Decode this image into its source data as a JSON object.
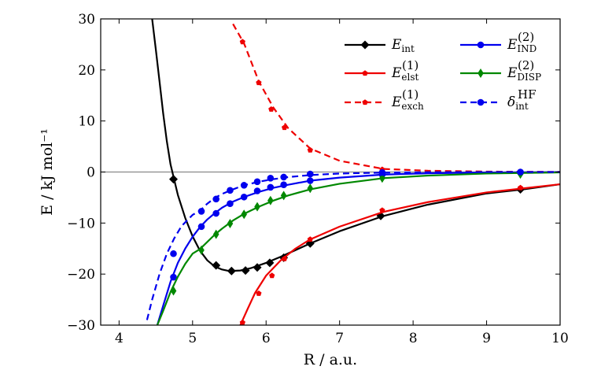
{
  "chart_data": {
    "type": "line",
    "title": "",
    "xlabel": "R / a.u.",
    "ylabel": "E / kJ mol⁻¹",
    "xlim": [
      3.75,
      10
    ],
    "ylim": [
      -30,
      30
    ],
    "xticks": [
      4,
      5,
      6,
      7,
      8,
      9,
      10
    ],
    "yticks": [
      -30,
      -20,
      -10,
      0,
      10,
      20,
      30
    ],
    "xtick_labels": [
      "4",
      "5",
      "6",
      "7",
      "8",
      "9",
      "10"
    ],
    "ytick_labels": [
      "−30",
      "−20",
      "−10",
      "0",
      "10",
      "20",
      "30"
    ],
    "zero_line": true,
    "legend_position": "upper-right",
    "series": [
      {
        "id": "int",
        "name": "E_int",
        "label_main": "E",
        "label_sub": "int",
        "label_sup": "",
        "color": "#000000",
        "linestyle": "solid",
        "marker": "diamond",
        "curve": [
          [
            4.45,
            30
          ],
          [
            4.5,
            24
          ],
          [
            4.55,
            17.8
          ],
          [
            4.6,
            11.5
          ],
          [
            4.65,
            6
          ],
          [
            4.7,
            1.5
          ],
          [
            4.75,
            -1.5
          ],
          [
            4.8,
            -4.5
          ],
          [
            4.9,
            -9
          ],
          [
            5.0,
            -12.6
          ],
          [
            5.1,
            -15.4
          ],
          [
            5.2,
            -17.3
          ],
          [
            5.3,
            -18.5
          ],
          [
            5.4,
            -19.1
          ],
          [
            5.5,
            -19.4
          ],
          [
            5.65,
            -19.3
          ],
          [
            5.8,
            -18.8
          ],
          [
            6.0,
            -17.8
          ],
          [
            6.2,
            -16.6
          ],
          [
            6.4,
            -15.3
          ],
          [
            6.6,
            -14.0
          ],
          [
            7.0,
            -11.6
          ],
          [
            7.6,
            -8.6
          ],
          [
            8.2,
            -6.4
          ],
          [
            9.0,
            -4.2
          ],
          [
            9.5,
            -3.4
          ],
          [
            10.0,
            -2.4
          ]
        ],
        "points": [
          [
            4.74,
            -1.4
          ],
          [
            5.32,
            -18.3
          ],
          [
            5.53,
            -19.4
          ],
          [
            5.72,
            -19.3
          ],
          [
            5.88,
            -18.7
          ],
          [
            6.05,
            -17.8
          ],
          [
            6.24,
            -16.8
          ],
          [
            6.6,
            -14.0
          ],
          [
            7.56,
            -8.6
          ],
          [
            9.46,
            -3.4
          ]
        ]
      },
      {
        "id": "elst",
        "name": "E_elst^(1)",
        "label_main": "E",
        "label_sub": "elst",
        "label_sup": "(1)",
        "color": "#ee0000",
        "linestyle": "solid",
        "marker": "pentagon",
        "curve": [
          [
            5.65,
            -30
          ],
          [
            5.75,
            -26.8
          ],
          [
            5.85,
            -23.7
          ],
          [
            6.0,
            -20.3
          ],
          [
            6.2,
            -17.3
          ],
          [
            6.4,
            -15.0
          ],
          [
            6.6,
            -13.2
          ],
          [
            7.0,
            -10.7
          ],
          [
            7.6,
            -7.8
          ],
          [
            8.2,
            -5.9
          ],
          [
            9.0,
            -4.0
          ],
          [
            9.5,
            -3.2
          ],
          [
            10.0,
            -2.4
          ]
        ],
        "points": [
          [
            5.68,
            -29.5
          ],
          [
            5.9,
            -23.8
          ],
          [
            6.08,
            -20.3
          ],
          [
            6.25,
            -17.0
          ],
          [
            6.6,
            -13.2
          ],
          [
            7.58,
            -7.5
          ],
          [
            9.46,
            -3.1
          ]
        ]
      },
      {
        "id": "exch",
        "name": "E_exch^(1)",
        "label_main": "E",
        "label_sub": "exch",
        "label_sup": "(1)",
        "color": "#ee0000",
        "linestyle": "dashed",
        "marker": "pentagon",
        "curve": [
          [
            5.55,
            29.0
          ],
          [
            5.7,
            25.2
          ],
          [
            5.9,
            17.8
          ],
          [
            6.1,
            12.6
          ],
          [
            6.3,
            8.6
          ],
          [
            6.6,
            4.6
          ],
          [
            7.0,
            2.2
          ],
          [
            7.6,
            0.6
          ],
          [
            8.2,
            0.25
          ],
          [
            9.0,
            0.08
          ],
          [
            10.0,
            0.02
          ]
        ],
        "points": [
          [
            5.68,
            25.5
          ],
          [
            5.9,
            17.5
          ],
          [
            6.07,
            12.3
          ],
          [
            6.25,
            8.7
          ],
          [
            6.6,
            4.3
          ],
          [
            7.58,
            0.5
          ],
          [
            9.46,
            0.05
          ]
        ]
      },
      {
        "id": "ind",
        "name": "E_IND^(2)",
        "label_main": "E",
        "label_sub": "IND",
        "label_sup": "(2)",
        "color": "#0000ee",
        "linestyle": "solid",
        "marker": "circle",
        "curve": [
          [
            4.52,
            -30
          ],
          [
            4.6,
            -26.2
          ],
          [
            4.7,
            -21.5
          ],
          [
            4.8,
            -17.8
          ],
          [
            4.9,
            -15.0
          ],
          [
            5.0,
            -12.7
          ],
          [
            5.1,
            -10.8
          ],
          [
            5.2,
            -9.3
          ],
          [
            5.3,
            -8.1
          ],
          [
            5.4,
            -7.0
          ],
          [
            5.55,
            -5.8
          ],
          [
            5.7,
            -4.9
          ],
          [
            5.9,
            -3.9
          ],
          [
            6.1,
            -3.1
          ],
          [
            6.3,
            -2.5
          ],
          [
            6.6,
            -1.7
          ],
          [
            7.0,
            -1.1
          ],
          [
            7.6,
            -0.5
          ],
          [
            8.2,
            -0.25
          ],
          [
            9.0,
            -0.1
          ],
          [
            10.0,
            -0.02
          ]
        ],
        "points": [
          [
            4.74,
            -20.6
          ],
          [
            5.12,
            -10.7
          ],
          [
            5.32,
            -8.1
          ],
          [
            5.51,
            -6.2
          ],
          [
            5.7,
            -4.9
          ],
          [
            5.88,
            -3.7
          ],
          [
            6.06,
            -3.0
          ],
          [
            6.24,
            -2.5
          ],
          [
            6.6,
            -1.7
          ],
          [
            7.58,
            -0.5
          ],
          [
            9.46,
            -0.1
          ]
        ]
      },
      {
        "id": "disp",
        "name": "E_DISP^(2)",
        "label_main": "E",
        "label_sub": "DISP",
        "label_sup": "(2)",
        "color": "#008800",
        "linestyle": "solid",
        "marker": "thin_diamond",
        "curve": [
          [
            4.52,
            -30
          ],
          [
            4.6,
            -27.2
          ],
          [
            4.7,
            -23.5
          ],
          [
            4.8,
            -20.5
          ],
          [
            4.9,
            -18.0
          ],
          [
            5.0,
            -16.0
          ],
          [
            5.1,
            -15.1
          ],
          [
            5.2,
            -13.7
          ],
          [
            5.3,
            -12.3
          ],
          [
            5.4,
            -11.1
          ],
          [
            5.55,
            -9.5
          ],
          [
            5.7,
            -8.2
          ],
          [
            5.9,
            -6.8
          ],
          [
            6.1,
            -5.6
          ],
          [
            6.3,
            -4.6
          ],
          [
            6.6,
            -3.4
          ],
          [
            7.0,
            -2.3
          ],
          [
            7.6,
            -1.2
          ],
          [
            8.2,
            -0.7
          ],
          [
            9.0,
            -0.3
          ],
          [
            10.0,
            -0.08
          ]
        ],
        "points": [
          [
            4.74,
            -23.3
          ],
          [
            5.12,
            -15.3
          ],
          [
            5.32,
            -12.2
          ],
          [
            5.51,
            -10.1
          ],
          [
            5.7,
            -8.3
          ],
          [
            5.88,
            -6.8
          ],
          [
            6.06,
            -5.6
          ],
          [
            6.24,
            -4.6
          ],
          [
            6.6,
            -3.2
          ],
          [
            7.58,
            -1.2
          ],
          [
            9.46,
            -0.4
          ]
        ]
      },
      {
        "id": "dhf",
        "name": "delta_int^HF",
        "label_main": "δ",
        "label_sub": "int",
        "label_sup": "HF",
        "color": "#0000ee",
        "linestyle": "dashed",
        "marker": "circle",
        "curve": [
          [
            4.38,
            -29.0
          ],
          [
            4.45,
            -25.0
          ],
          [
            4.55,
            -20.0
          ],
          [
            4.65,
            -16.0
          ],
          [
            4.75,
            -13.0
          ],
          [
            4.85,
            -10.6
          ],
          [
            5.0,
            -8.4
          ],
          [
            5.1,
            -7.6
          ],
          [
            5.2,
            -6.2
          ],
          [
            5.3,
            -5.1
          ],
          [
            5.4,
            -4.3
          ],
          [
            5.55,
            -3.4
          ],
          [
            5.7,
            -2.6
          ],
          [
            5.9,
            -1.9
          ],
          [
            6.1,
            -1.4
          ],
          [
            6.3,
            -1.0
          ],
          [
            6.6,
            -0.6
          ],
          [
            7.0,
            -0.3
          ],
          [
            7.6,
            -0.12
          ],
          [
            8.2,
            -0.04
          ],
          [
            9.0,
            0.0
          ],
          [
            10.0,
            0.0
          ]
        ],
        "points": [
          [
            4.74,
            -16.0
          ],
          [
            5.12,
            -7.7
          ],
          [
            5.32,
            -5.3
          ],
          [
            5.51,
            -3.6
          ],
          [
            5.7,
            -2.6
          ],
          [
            5.88,
            -1.9
          ],
          [
            6.06,
            -1.2
          ],
          [
            6.24,
            -1.0
          ],
          [
            6.6,
            -0.4
          ],
          [
            7.58,
            -0.1
          ],
          [
            9.46,
            0.0
          ]
        ]
      }
    ],
    "legend_columns": [
      [
        "int",
        "elst",
        "exch"
      ],
      [
        "ind",
        "disp",
        "dhf"
      ]
    ]
  }
}
